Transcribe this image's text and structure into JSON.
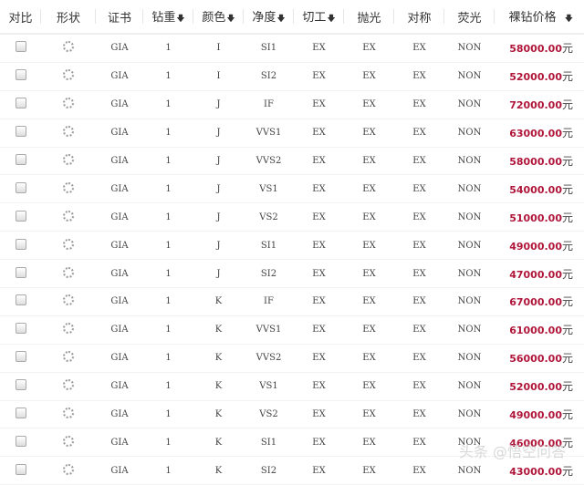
{
  "headers": [
    {
      "label": "对比",
      "sortable": false
    },
    {
      "label": "形状",
      "sortable": false
    },
    {
      "label": "证书",
      "sortable": false
    },
    {
      "label": "钻重",
      "sortable": true
    },
    {
      "label": "颜色",
      "sortable": true
    },
    {
      "label": "净度",
      "sortable": true
    },
    {
      "label": "切工",
      "sortable": true
    },
    {
      "label": "抛光",
      "sortable": false
    },
    {
      "label": "对称",
      "sortable": false
    },
    {
      "label": "荧光",
      "sortable": false
    },
    {
      "label": "裸钻价格",
      "sortable": true
    }
  ],
  "sort_icon": "arrow-down-icon",
  "currency_unit": "元",
  "price_color": "#b0163a",
  "rows": [
    {
      "cert": "GIA",
      "carat": "1",
      "color": "I",
      "clarity": "SI1",
      "cut": "EX",
      "polish": "EX",
      "symmetry": "EX",
      "fluor": "NON",
      "price": "58000.00"
    },
    {
      "cert": "GIA",
      "carat": "1",
      "color": "I",
      "clarity": "SI2",
      "cut": "EX",
      "polish": "EX",
      "symmetry": "EX",
      "fluor": "NON",
      "price": "52000.00"
    },
    {
      "cert": "GIA",
      "carat": "1",
      "color": "J",
      "clarity": "IF",
      "cut": "EX",
      "polish": "EX",
      "symmetry": "EX",
      "fluor": "NON",
      "price": "72000.00"
    },
    {
      "cert": "GIA",
      "carat": "1",
      "color": "J",
      "clarity": "VVS1",
      "cut": "EX",
      "polish": "EX",
      "symmetry": "EX",
      "fluor": "NON",
      "price": "63000.00"
    },
    {
      "cert": "GIA",
      "carat": "1",
      "color": "J",
      "clarity": "VVS2",
      "cut": "EX",
      "polish": "EX",
      "symmetry": "EX",
      "fluor": "NON",
      "price": "58000.00"
    },
    {
      "cert": "GIA",
      "carat": "1",
      "color": "J",
      "clarity": "VS1",
      "cut": "EX",
      "polish": "EX",
      "symmetry": "EX",
      "fluor": "NON",
      "price": "54000.00"
    },
    {
      "cert": "GIA",
      "carat": "1",
      "color": "J",
      "clarity": "VS2",
      "cut": "EX",
      "polish": "EX",
      "symmetry": "EX",
      "fluor": "NON",
      "price": "51000.00"
    },
    {
      "cert": "GIA",
      "carat": "1",
      "color": "J",
      "clarity": "SI1",
      "cut": "EX",
      "polish": "EX",
      "symmetry": "EX",
      "fluor": "NON",
      "price": "49000.00"
    },
    {
      "cert": "GIA",
      "carat": "1",
      "color": "J",
      "clarity": "SI2",
      "cut": "EX",
      "polish": "EX",
      "symmetry": "EX",
      "fluor": "NON",
      "price": "47000.00"
    },
    {
      "cert": "GIA",
      "carat": "1",
      "color": "K",
      "clarity": "IF",
      "cut": "EX",
      "polish": "EX",
      "symmetry": "EX",
      "fluor": "NON",
      "price": "67000.00"
    },
    {
      "cert": "GIA",
      "carat": "1",
      "color": "K",
      "clarity": "VVS1",
      "cut": "EX",
      "polish": "EX",
      "symmetry": "EX",
      "fluor": "NON",
      "price": "61000.00"
    },
    {
      "cert": "GIA",
      "carat": "1",
      "color": "K",
      "clarity": "VVS2",
      "cut": "EX",
      "polish": "EX",
      "symmetry": "EX",
      "fluor": "NON",
      "price": "56000.00"
    },
    {
      "cert": "GIA",
      "carat": "1",
      "color": "K",
      "clarity": "VS1",
      "cut": "EX",
      "polish": "EX",
      "symmetry": "EX",
      "fluor": "NON",
      "price": "52000.00"
    },
    {
      "cert": "GIA",
      "carat": "1",
      "color": "K",
      "clarity": "VS2",
      "cut": "EX",
      "polish": "EX",
      "symmetry": "EX",
      "fluor": "NON",
      "price": "49000.00"
    },
    {
      "cert": "GIA",
      "carat": "1",
      "color": "K",
      "clarity": "SI1",
      "cut": "EX",
      "polish": "EX",
      "symmetry": "EX",
      "fluor": "NON",
      "price": "46000.00"
    },
    {
      "cert": "GIA",
      "carat": "1",
      "color": "K",
      "clarity": "SI2",
      "cut": "EX",
      "polish": "EX",
      "symmetry": "EX",
      "fluor": "NON",
      "price": "43000.00"
    }
  ],
  "watermark": "头条 @悟空问答"
}
